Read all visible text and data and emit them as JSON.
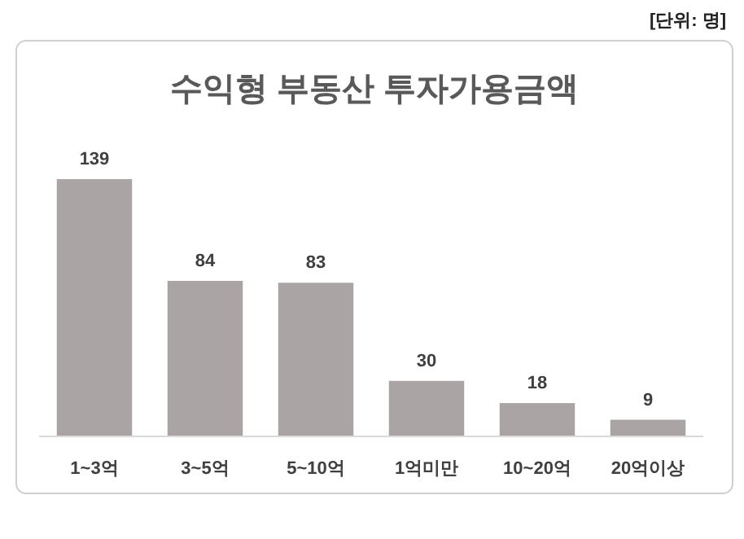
{
  "chart_data": {
    "type": "bar",
    "title": "수익형 부동산 투자가용금액",
    "categories": [
      "1~3억",
      "3~5억",
      "5~10억",
      "1억미만",
      "10~20억",
      "20억이상"
    ],
    "values": [
      139,
      84,
      83,
      30,
      18,
      9
    ],
    "color": "#aaa5a4",
    "data_labels": true,
    "annotations": [
      "[단위: 명]"
    ]
  }
}
